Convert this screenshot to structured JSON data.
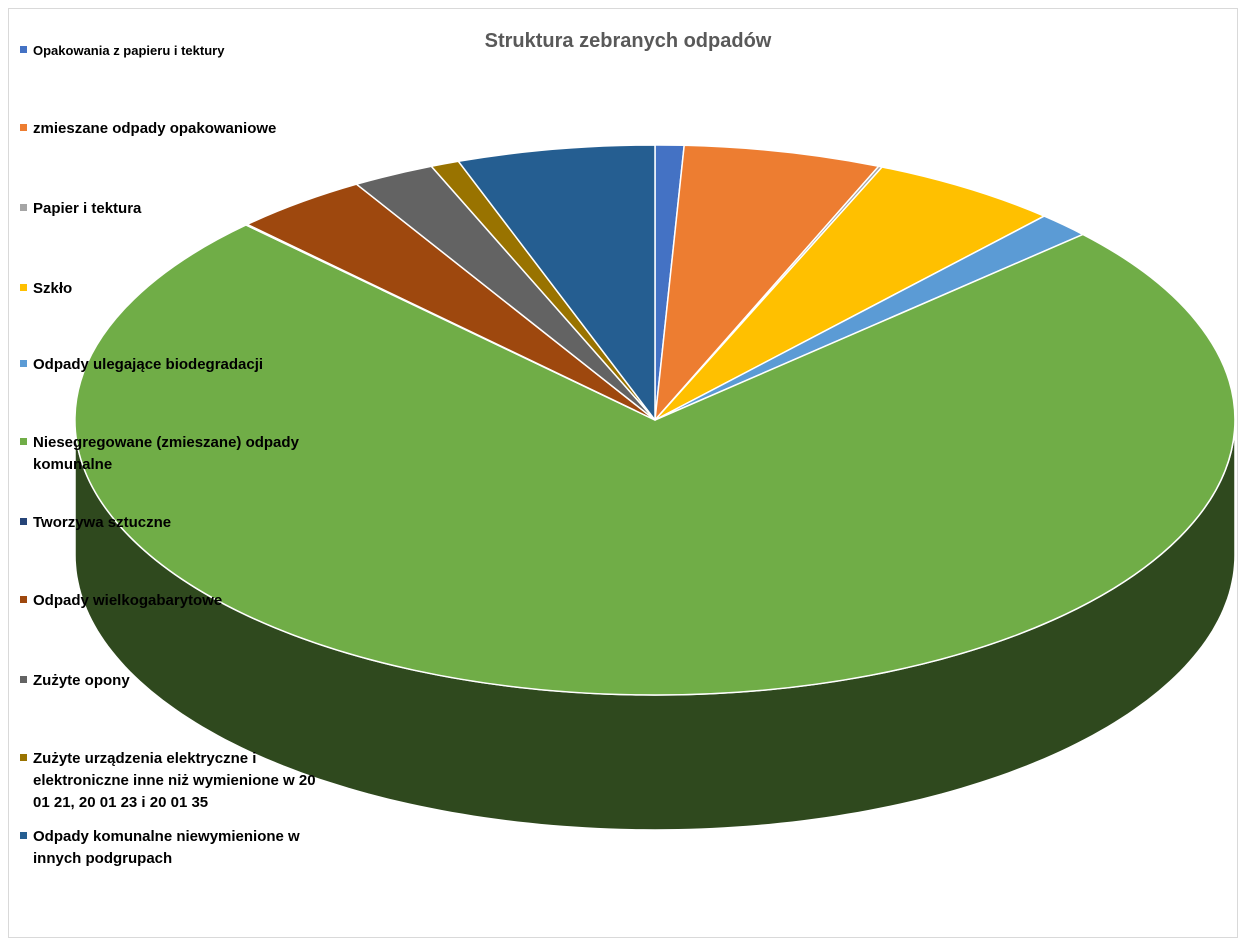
{
  "chart_data": {
    "type": "pie",
    "title": "Struktura zebranych odpadów",
    "legend_position": "left",
    "slices": [
      {
        "label": "Opakowania z papieru i tektury",
        "value": 0.8,
        "color": "#4472C4"
      },
      {
        "label": "zmieszane odpady opakowaniowe",
        "value": 5.5,
        "color": "#ED7D31"
      },
      {
        "label": "Papier i tektura",
        "value": 0.1,
        "color": "#A5A5A5"
      },
      {
        "label": "Szkło",
        "value": 5.3,
        "color": "#FFC000"
      },
      {
        "label": "Odpady ulegające biodegradacji",
        "value": 1.5,
        "color": "#5B9BD5"
      },
      {
        "label": "Niesegregowane (zmieszane) odpady komunalne",
        "value": 74.3,
        "color": "#70AD47"
      },
      {
        "label": "Tworzywa sztuczne",
        "value": 0.05,
        "color": "#264478"
      },
      {
        "label": "Odpady wielkogabarytowe",
        "value": 3.8,
        "color": "#9E480E"
      },
      {
        "label": "Zużyte opony",
        "value": 2.3,
        "color": "#636363"
      },
      {
        "label": "Zużyte urządzenia elektryczne i elektroniczne inne niż wymienione w 20 01 21, 20 01 23 i 20 01 35",
        "value": 0.8,
        "color": "#997300"
      },
      {
        "label": "Odpady komunalne niewymienione w innych podgrupach",
        "value": 5.5,
        "color": "#255E91"
      }
    ]
  }
}
